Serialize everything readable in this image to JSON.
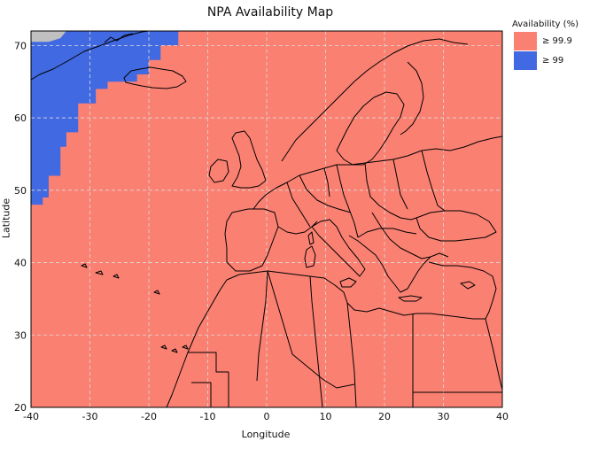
{
  "chart_data": {
    "type": "heatmap",
    "title": "NPA Availability Map",
    "xlabel": "Longitude",
    "ylabel": "Latitude",
    "xlim": [
      -40,
      40
    ],
    "ylim": [
      20,
      72
    ],
    "xticks": [
      -40,
      -30,
      -20,
      -10,
      0,
      10,
      20,
      30,
      40
    ],
    "yticks": [
      20,
      30,
      40,
      50,
      60,
      70
    ],
    "grid": true,
    "legend_title": "Availability (%)",
    "legend_placement": "right",
    "legend": [
      {
        "label": "≥ 99.9",
        "color": "#FA8072"
      },
      {
        "label": "≥ 99",
        "color": "#4169E1"
      }
    ],
    "no_data_color": "#C0C0C0",
    "regions": [
      {
        "level": "≥ 99",
        "color": "#4169E1",
        "boundary": [
          [
            -40,
            72
          ],
          [
            -15,
            72
          ],
          [
            -15,
            70
          ],
          [
            -18,
            70
          ],
          [
            -18,
            68
          ],
          [
            -20,
            68
          ],
          [
            -20,
            66
          ],
          [
            -22,
            66
          ],
          [
            -22,
            65
          ],
          [
            -27,
            65
          ],
          [
            -27,
            64
          ],
          [
            -29,
            64
          ],
          [
            -29,
            62
          ],
          [
            -32,
            62
          ],
          [
            -32,
            58
          ],
          [
            -34,
            58
          ],
          [
            -34,
            56
          ],
          [
            -35,
            56
          ],
          [
            -35,
            52
          ],
          [
            -37,
            52
          ],
          [
            -37,
            49
          ],
          [
            -38,
            49
          ],
          [
            -38,
            48
          ],
          [
            -40,
            48
          ]
        ]
      },
      {
        "level": "no data",
        "color": "#C0C0C0",
        "boundary": [
          [
            -40,
            72
          ],
          [
            -34,
            72
          ],
          [
            -35,
            71
          ],
          [
            -37,
            70.5
          ],
          [
            -40,
            70.5
          ]
        ]
      }
    ]
  }
}
